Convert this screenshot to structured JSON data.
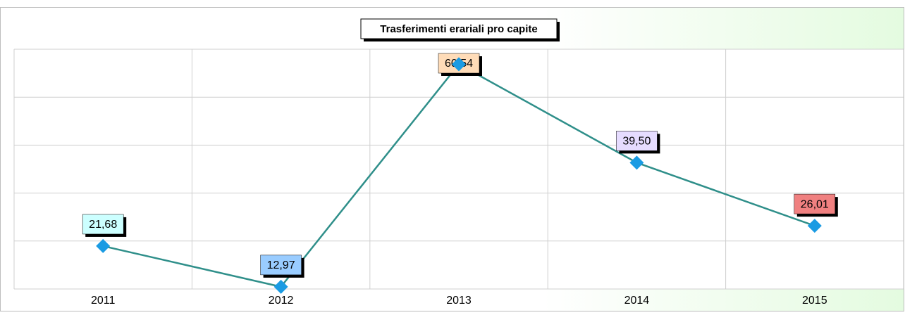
{
  "chart_data": {
    "type": "line",
    "title": "Trasferimenti erariali pro capite",
    "categories": [
      "2011",
      "2012",
      "2013",
      "2014",
      "2015"
    ],
    "values": [
      21.68,
      12.97,
      60.54,
      39.5,
      26.01
    ],
    "value_labels": [
      "21,68",
      "12,97",
      "60,54",
      "39,50",
      "26,01"
    ],
    "color": "#2f8f8a",
    "marker_color": "#1a9be3",
    "label_colors": [
      "#ccffff",
      "#99ccff",
      "#ffdcb8",
      "#e6dcff",
      "#f08080"
    ],
    "ylim": [
      12.5,
      63.75
    ],
    "yticks": [
      12.5,
      22.75,
      33,
      43.25,
      53.5,
      63.75
    ],
    "grid": true
  }
}
